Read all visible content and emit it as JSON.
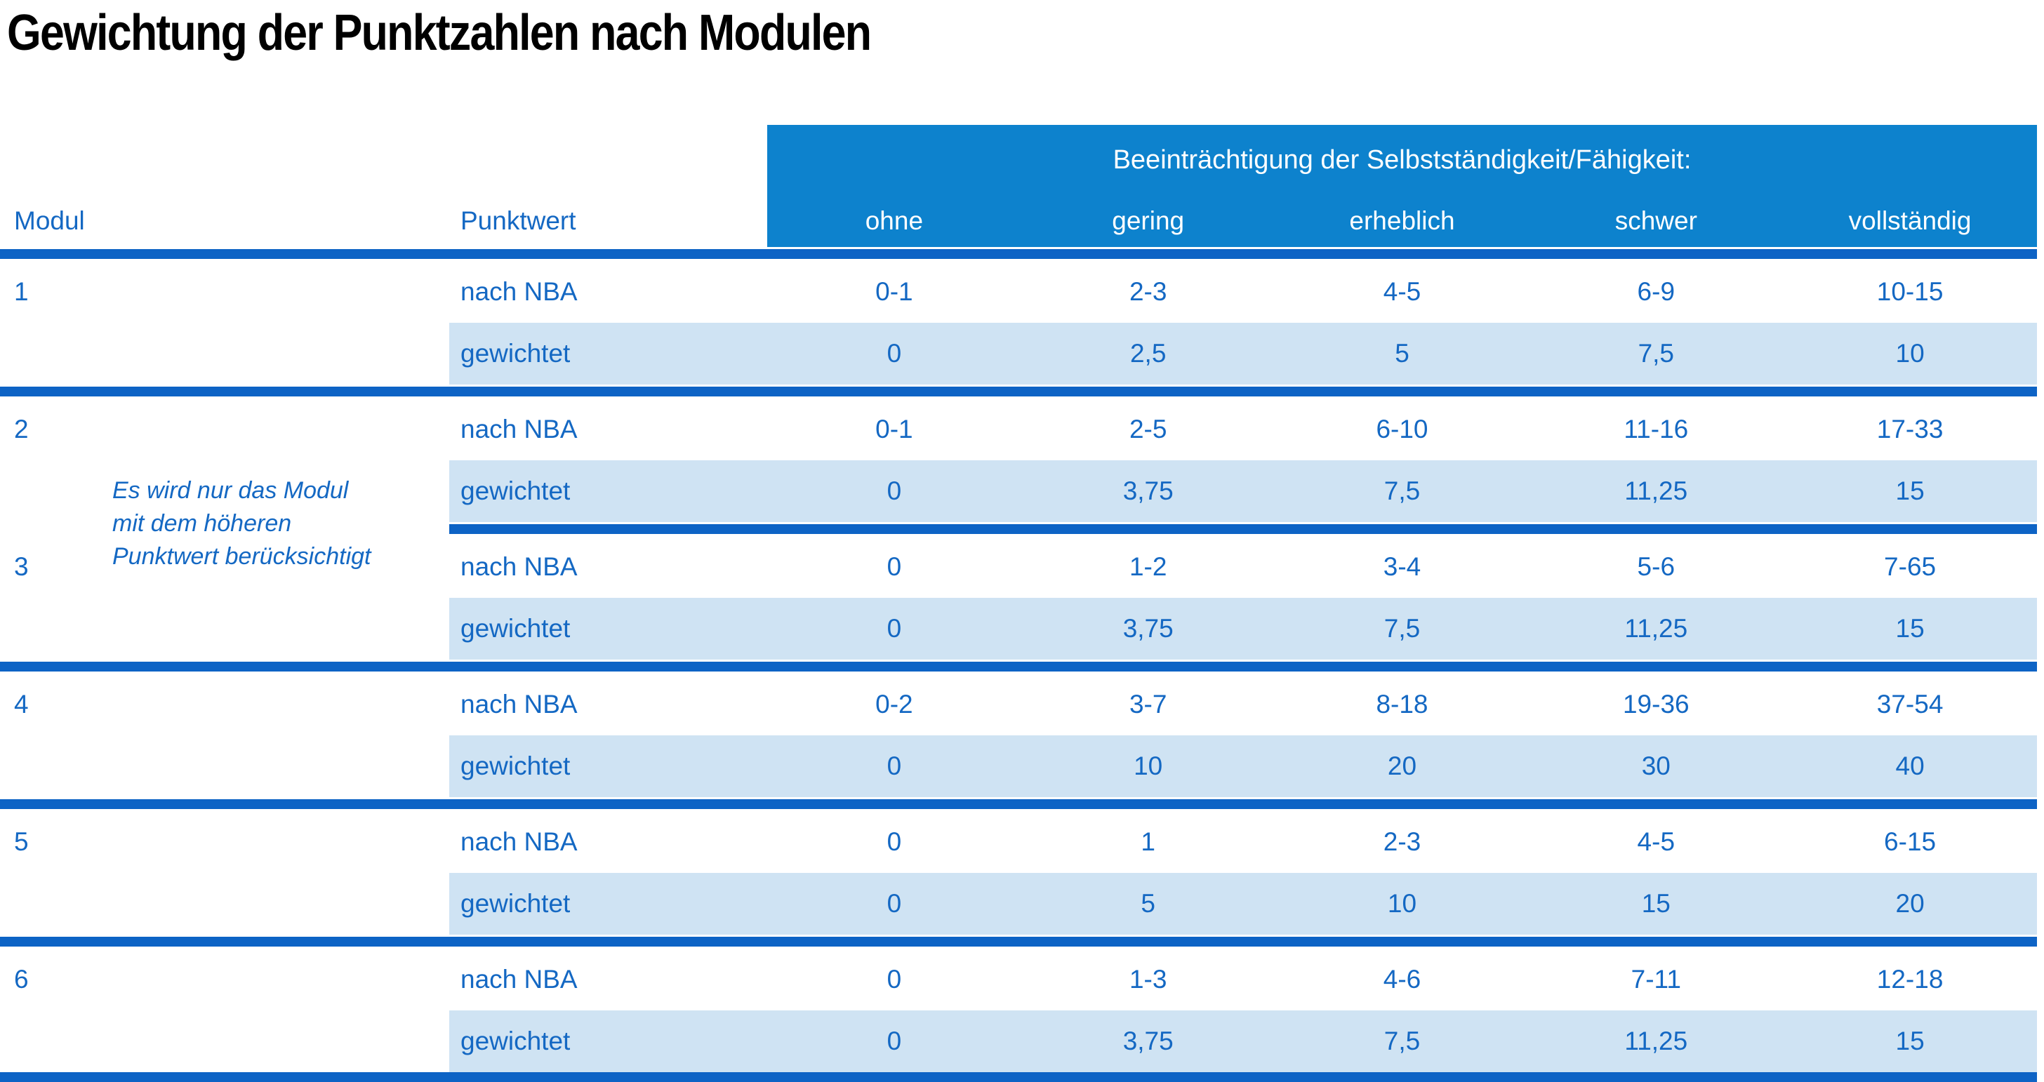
{
  "title": "Gewichtung der Punktzahlen nach Modulen",
  "colors": {
    "band_blue": "#0d82cd",
    "line_blue": "#0d63c5",
    "row_shade": "#cfe3f3",
    "text_blue": "#1468c3"
  },
  "table": {
    "col_modul": "Modul",
    "col_punktwert": "Punktwert",
    "group_header": "Beeinträchtigung der Selbstständigkeit/Fähigkeit:",
    "severity_labels": [
      "ohne",
      "gering",
      "erheblich",
      "schwer",
      "vollständig"
    ],
    "row_label_nba": "nach NBA",
    "row_label_weighted": "gewichtet",
    "note_lines": [
      "Es wird nur das Modul",
      "mit dem höheren",
      "Punktwert berücksichtigt"
    ],
    "modules": [
      {
        "id": "1",
        "nba": [
          "0-1",
          "2-3",
          "4-5",
          "6-9",
          "10-15"
        ],
        "weighted": [
          "0",
          "2,5",
          "5",
          "7,5",
          "10"
        ]
      },
      {
        "id": "2",
        "nba": [
          "0-1",
          "2-5",
          "6-10",
          "11-16",
          "17-33"
        ],
        "weighted": [
          "0",
          "3,75",
          "7,5",
          "11,25",
          "15"
        ]
      },
      {
        "id": "3",
        "nba": [
          "0",
          "1-2",
          "3-4",
          "5-6",
          "7-65"
        ],
        "weighted": [
          "0",
          "3,75",
          "7,5",
          "11,25",
          "15"
        ]
      },
      {
        "id": "4",
        "nba": [
          "0-2",
          "3-7",
          "8-18",
          "19-36",
          "37-54"
        ],
        "weighted": [
          "0",
          "10",
          "20",
          "30",
          "40"
        ]
      },
      {
        "id": "5",
        "nba": [
          "0",
          "1",
          "2-3",
          "4-5",
          "6-15"
        ],
        "weighted": [
          "0",
          "5",
          "10",
          "15",
          "20"
        ]
      },
      {
        "id": "6",
        "nba": [
          "0",
          "1-3",
          "4-6",
          "7-11",
          "12-18"
        ],
        "weighted": [
          "0",
          "3,75",
          "7,5",
          "11,25",
          "15"
        ]
      }
    ]
  }
}
